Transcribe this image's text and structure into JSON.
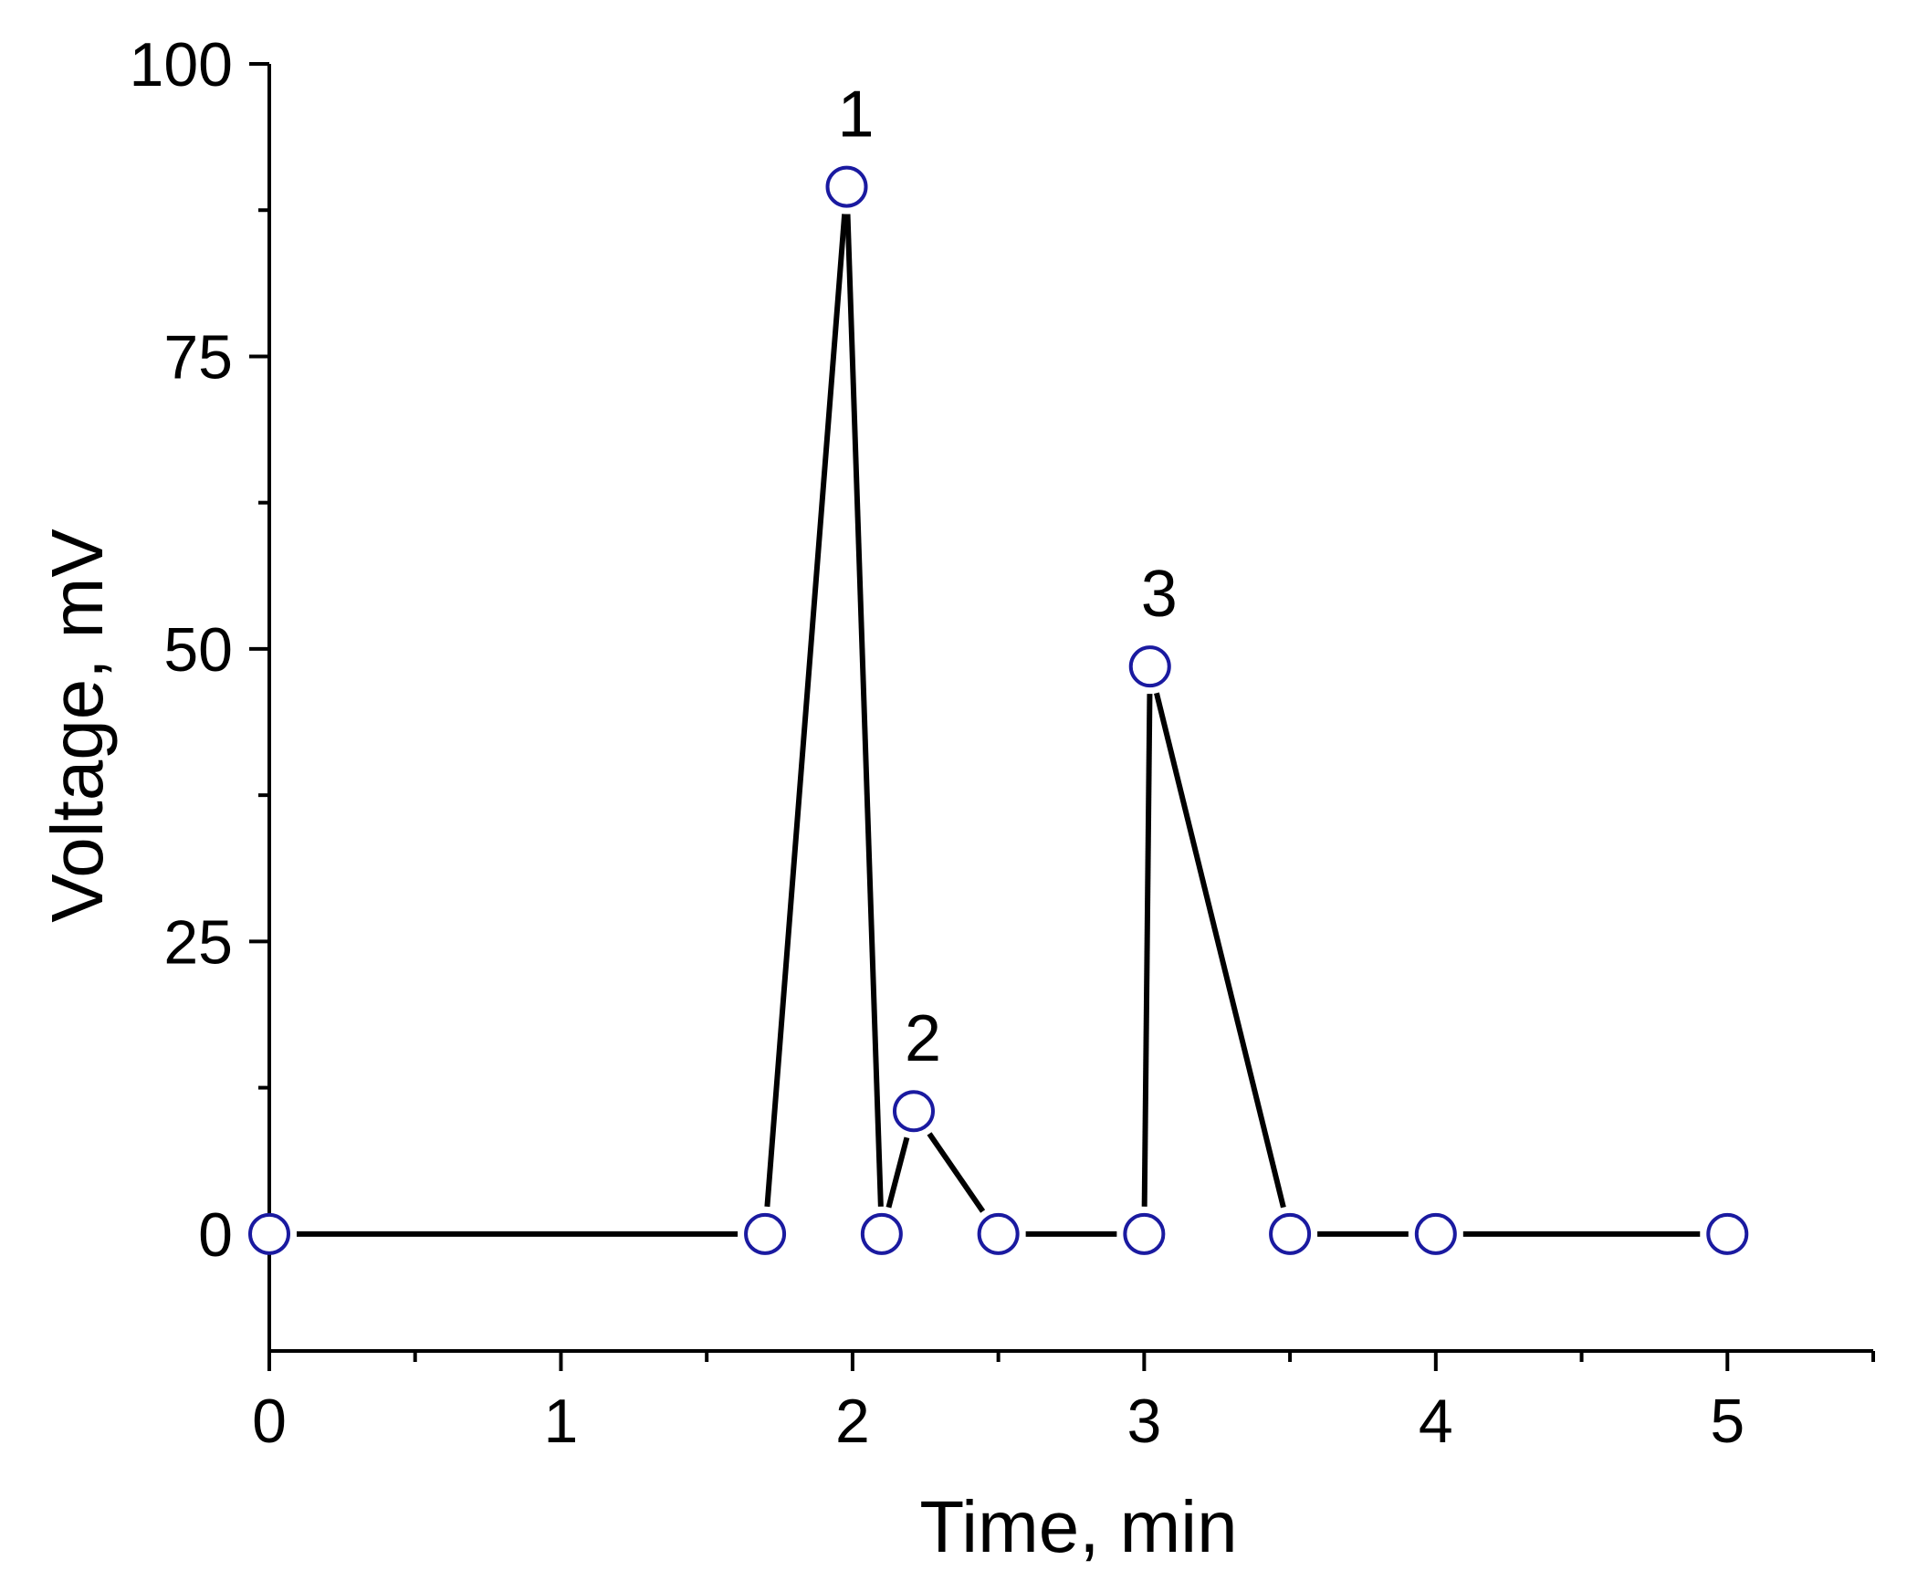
{
  "chart_data": {
    "type": "line",
    "xlabel": "Time, min",
    "ylabel": "Voltage, mV",
    "xlim": [
      0,
      5.5
    ],
    "ylim": [
      -10,
      100
    ],
    "x_ticks": [
      0,
      1,
      2,
      3,
      4,
      5
    ],
    "x_minor_ticks": [
      0.5,
      1.5,
      2.5,
      3.5,
      4.5,
      5.5
    ],
    "y_ticks": [
      0,
      25,
      50,
      75,
      100
    ],
    "y_minor_ticks": [
      12.5,
      37.5,
      62.5,
      87.5
    ],
    "grid": false,
    "series": [
      {
        "x": [
          0,
          1.7,
          1.98,
          2.1,
          2.21,
          2.5,
          3.0,
          3.02,
          3.5,
          4.0,
          5.0
        ],
        "y": [
          0,
          0,
          89.5,
          0,
          10.5,
          0,
          0,
          48.5,
          0,
          0,
          0
        ]
      }
    ],
    "annotations": [
      {
        "text": "1",
        "x": 1.98,
        "y": 89.5
      },
      {
        "text": "2",
        "x": 2.21,
        "y": 10.5
      },
      {
        "text": "3",
        "x": 3.02,
        "y": 48.5
      }
    ],
    "colors": {
      "line": "#000000",
      "marker_edge": "#1a1aa0",
      "marker_fill": "#ffffff",
      "axis": "#000000"
    }
  }
}
